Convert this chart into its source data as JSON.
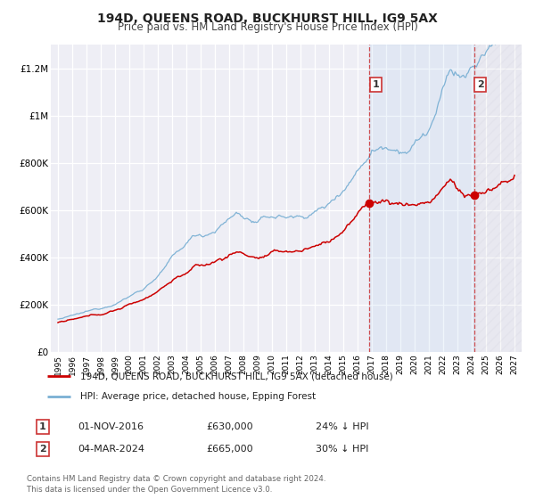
{
  "title": "194D, QUEENS ROAD, BUCKHURST HILL, IG9 5AX",
  "subtitle": "Price paid vs. HM Land Registry's House Price Index (HPI)",
  "legend_line1": "194D, QUEENS ROAD, BUCKHURST HILL, IG9 5AX (detached house)",
  "legend_line2": "HPI: Average price, detached house, Epping Forest",
  "annotation1_date": "01-NOV-2016",
  "annotation1_price": "£630,000",
  "annotation1_hpi": "24% ↓ HPI",
  "annotation1_year": 2016.833,
  "annotation1_value": 630000,
  "annotation2_date": "04-MAR-2024",
  "annotation2_price": "£665,000",
  "annotation2_hpi": "30% ↓ HPI",
  "annotation2_year": 2024.167,
  "annotation2_value": 665000,
  "ylabel_ticks": [
    "£0",
    "£200K",
    "£400K",
    "£600K",
    "£800K",
    "£1M",
    "£1.2M"
  ],
  "ytick_values": [
    0,
    200000,
    400000,
    600000,
    800000,
    1000000,
    1200000
  ],
  "ylim": [
    0,
    1300000
  ],
  "xlim_start": 1994.5,
  "xlim_end": 2027.5,
  "red_line_color": "#cc0000",
  "blue_line_color": "#7ab0d4",
  "dashed_line_color": "#cc3333",
  "footer_text": "Contains HM Land Registry data © Crown copyright and database right 2024.\nThis data is licensed under the Open Government Licence v3.0."
}
